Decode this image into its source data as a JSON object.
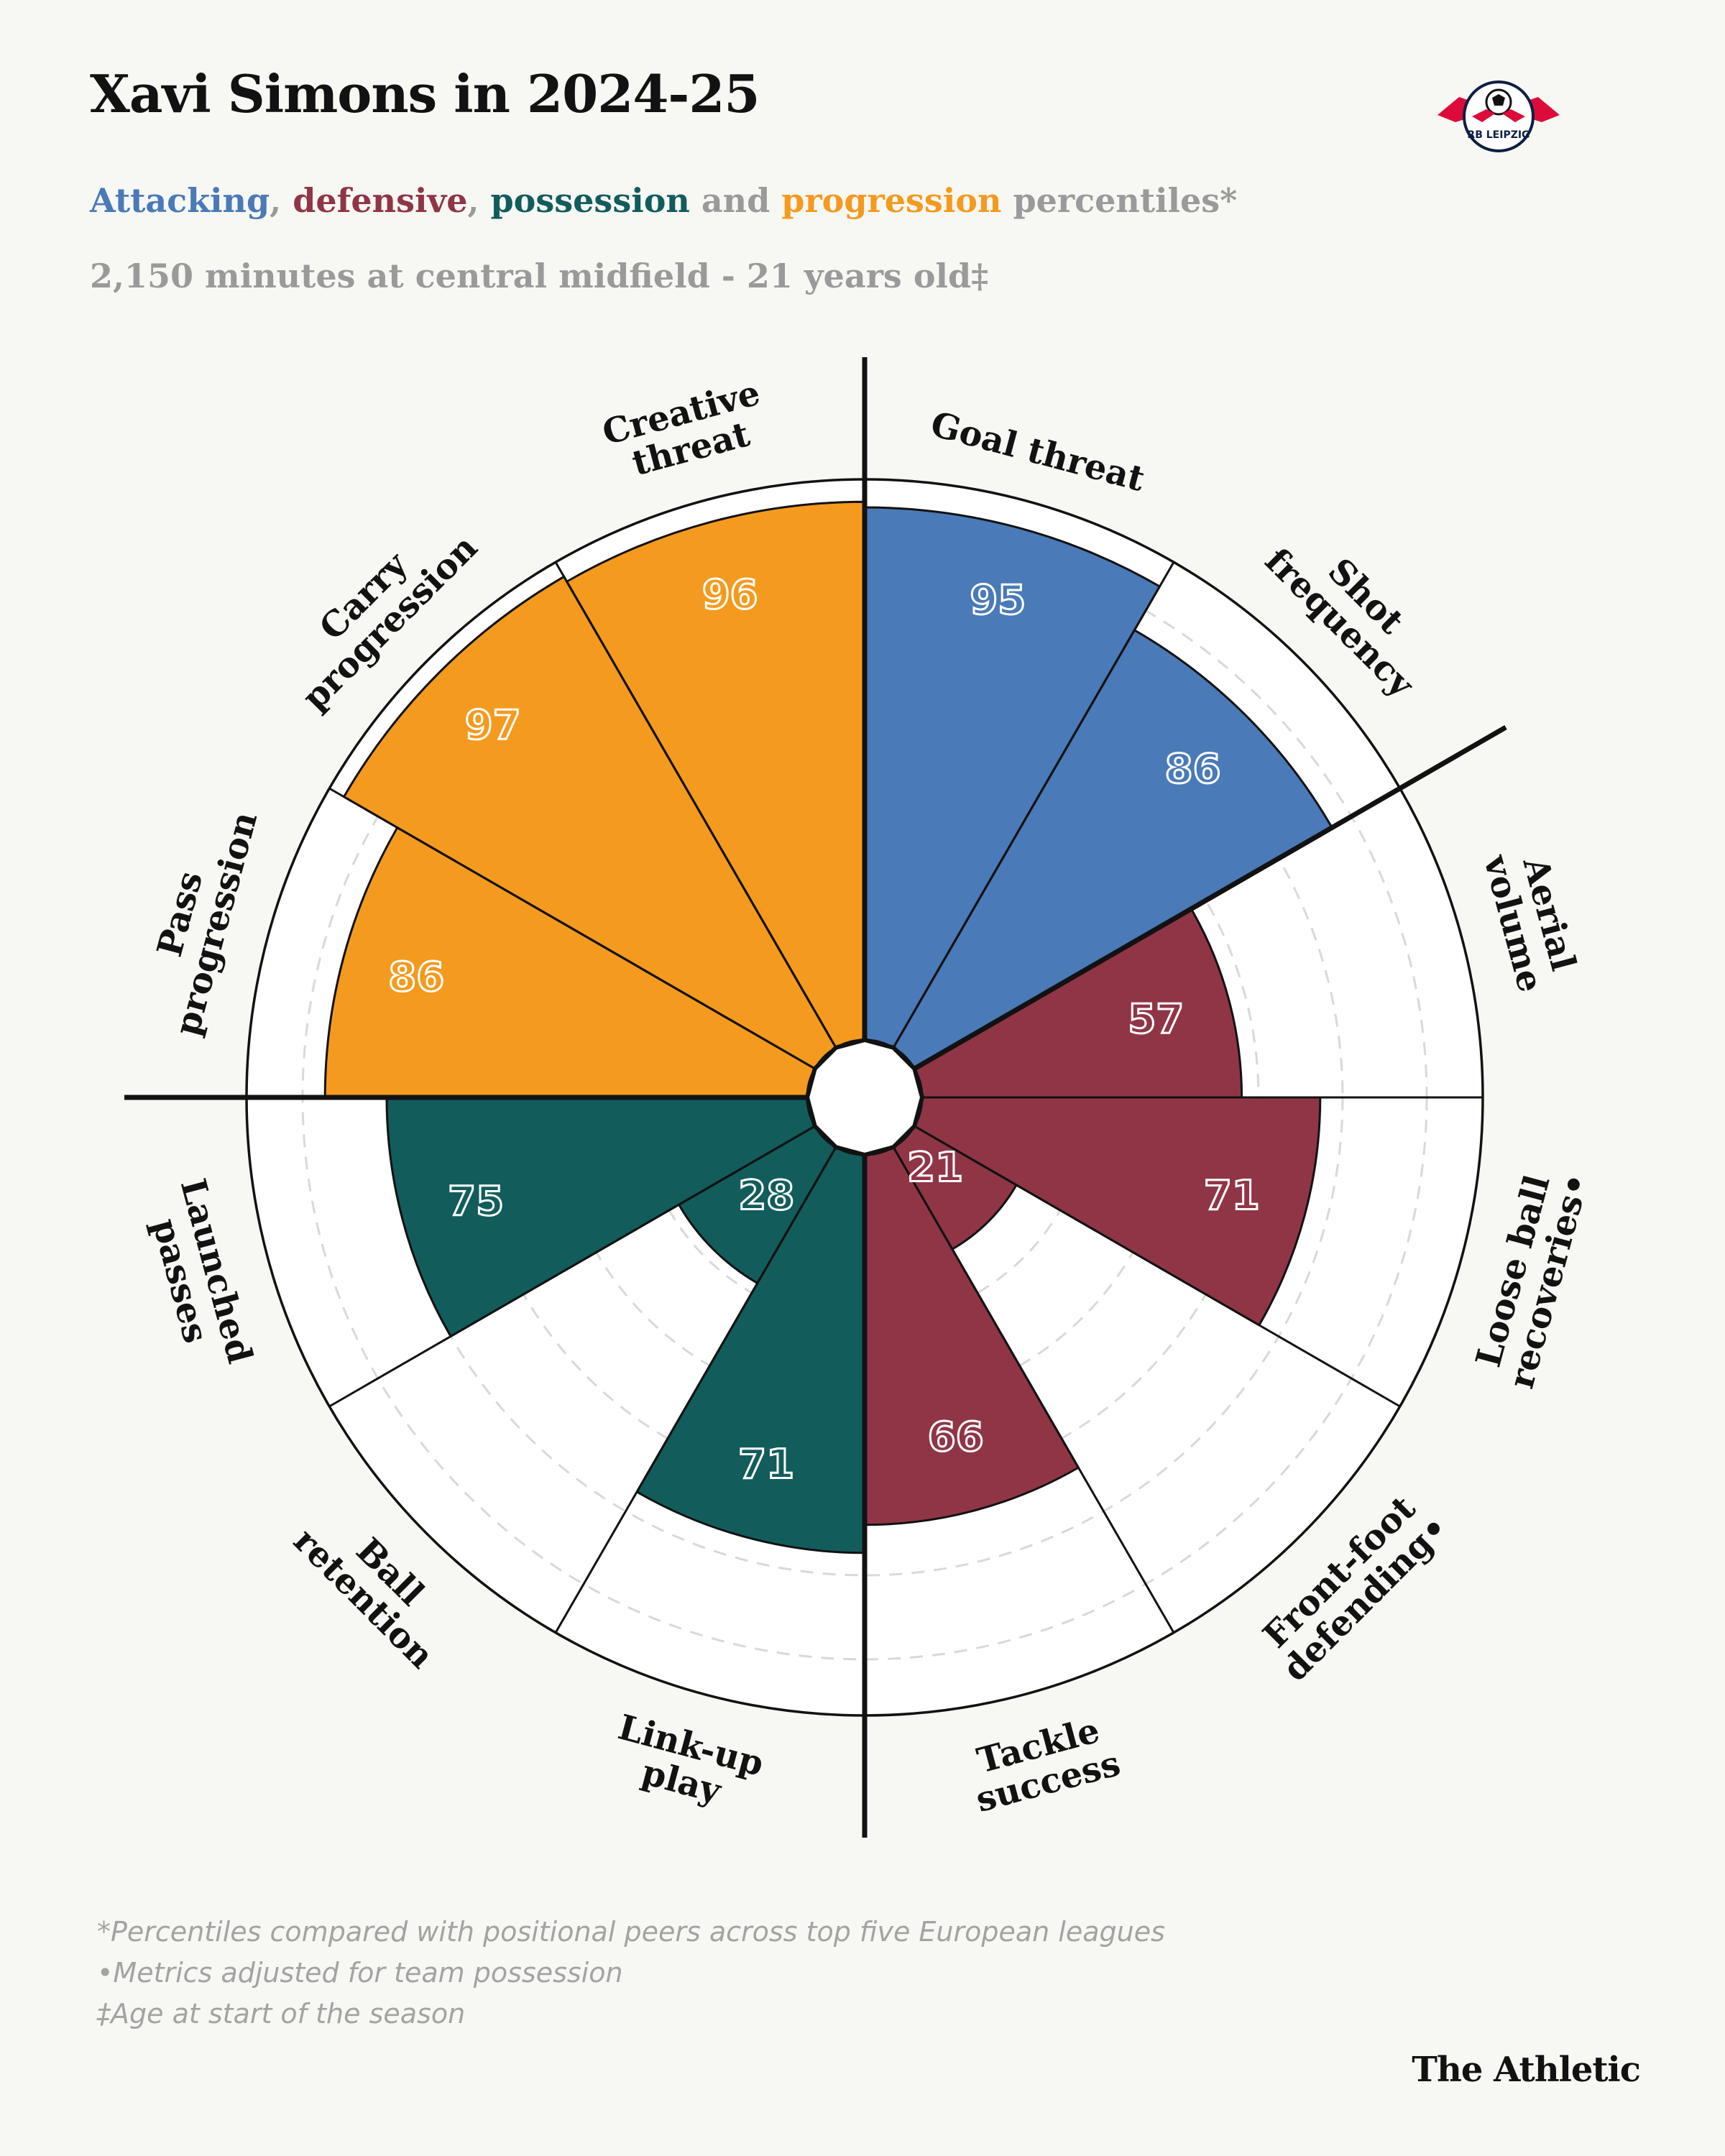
{
  "header": {
    "title": "Xavi Simons in 2024-25",
    "subtitle_parts": [
      {
        "text": "Attacking",
        "color": "#4a7ab7"
      },
      {
        "text": ", ",
        "color": "#9a9a9a"
      },
      {
        "text": "defensive",
        "color": "#903546"
      },
      {
        "text": ", ",
        "color": "#9a9a9a"
      },
      {
        "text": "possession",
        "color": "#125c5c"
      },
      {
        "text": " and ",
        "color": "#9a9a9a"
      },
      {
        "text": "progression",
        "color": "#f49a1e"
      },
      {
        "text": " percentiles*",
        "color": "#9a9a9a"
      }
    ],
    "meta": "2,150 minutes at central midfield - 21 years old‡",
    "logo_text": "RB LEIPZIG"
  },
  "colors": {
    "attacking": "#4a7ab7",
    "defensive": "#903546",
    "possession": "#125c5c",
    "progression": "#f49a1e"
  },
  "chart_data": {
    "type": "polar-bar",
    "scale": "percentile",
    "rmax": 100,
    "grid": "dashed rings",
    "direction": "clockwise from top",
    "metrics": [
      {
        "label": "Goal threat",
        "value": 95,
        "category": "attacking"
      },
      {
        "label": "Shot frequency",
        "value": 86,
        "category": "attacking"
      },
      {
        "label": "Aerial volume",
        "value": 57,
        "category": "defensive"
      },
      {
        "label": "Loose ball recoveries•",
        "value": 71,
        "category": "defensive"
      },
      {
        "label": "Front-foot defending•",
        "value": 21,
        "category": "defensive"
      },
      {
        "label": "Tackle success",
        "value": 66,
        "category": "defensive"
      },
      {
        "label": "Link-up play",
        "value": 71,
        "category": "possession"
      },
      {
        "label": "Ball retention",
        "value": 28,
        "category": "possession"
      },
      {
        "label": "Launched passes",
        "value": 75,
        "category": "possession"
      },
      {
        "label": "Pass progression",
        "value": 86,
        "category": "progression"
      },
      {
        "label": "Carry progression",
        "value": 97,
        "category": "progression"
      },
      {
        "label": "Creative threat",
        "value": 96,
        "category": "progression"
      }
    ]
  },
  "footnotes": [
    "*Percentiles compared with positional peers across top five European leagues",
    "•Metrics adjusted for team possession",
    "‡Age at start of the season"
  ],
  "brand": "The Athletic"
}
